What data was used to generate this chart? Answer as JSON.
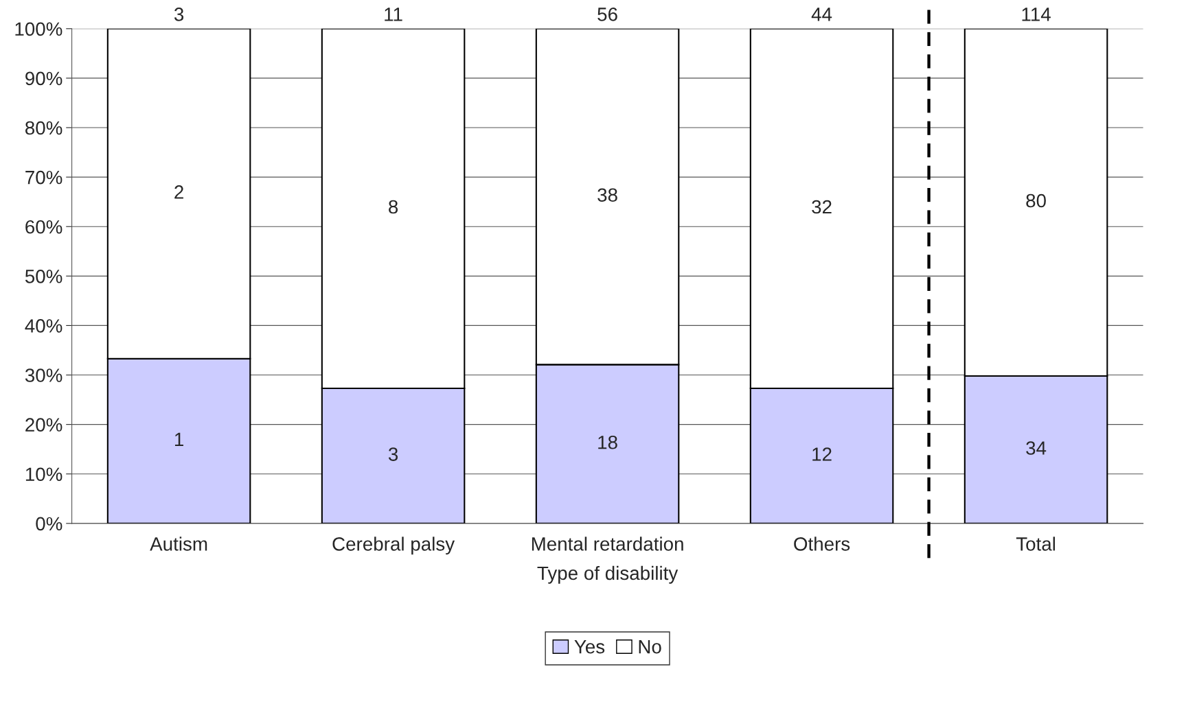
{
  "chart_data": {
    "type": "bar",
    "stacked": true,
    "xlabel": "Type of disability",
    "categories": [
      "Autism",
      "Cerebral palsy",
      "Mental retardation",
      "Others",
      "Total"
    ],
    "series": [
      {
        "name": "Yes",
        "color": "#ccccff",
        "values": [
          33.3,
          27.3,
          32.1,
          27.3,
          29.8
        ]
      },
      {
        "name": "No",
        "color": "#ffffff",
        "values": [
          66.7,
          72.7,
          67.9,
          72.7,
          70.2
        ]
      }
    ],
    "annotations": [
      "1",
      "3",
      "18",
      "12",
      "34",
      "2",
      "8",
      "38",
      "32",
      "80",
      "3",
      "11",
      "56",
      "44",
      "114"
    ],
    "ylim": [
      0,
      100
    ],
    "yticks": [
      {
        "value": 0,
        "label": "0%"
      },
      {
        "value": 10,
        "label": "10%"
      },
      {
        "value": 20,
        "label": "20%"
      },
      {
        "value": 30,
        "label": "30%"
      },
      {
        "value": 40,
        "label": "40%"
      },
      {
        "value": 50,
        "label": "50%"
      },
      {
        "value": 60,
        "label": "60%"
      },
      {
        "value": 70,
        "label": "70%"
      },
      {
        "value": 80,
        "label": "80%"
      },
      {
        "value": 90,
        "label": "90%"
      },
      {
        "value": 100,
        "label": "100%"
      }
    ],
    "grid": "y",
    "legend": "bottom"
  }
}
